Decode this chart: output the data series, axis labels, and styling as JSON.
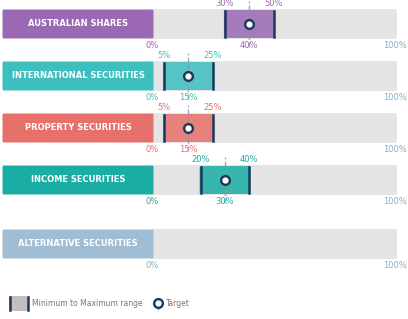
{
  "categories": [
    "AUSTRALIAN SHARES",
    "INTERNATIONAL SECURITIES",
    "PROPERTY SECURITIES",
    "INCOME SECURITIES",
    "ALTERNATIVE SECURITIES"
  ],
  "label_colors": [
    "#9b69b4",
    "#3dbfbf",
    "#e8706a",
    "#1aada3",
    "#a0bdd4"
  ],
  "range_colors": [
    "#9b69b4",
    "#3dbfbf",
    "#e8706a",
    "#1aada3",
    "#a0bdd4"
  ],
  "bar_bg_color": "#e4e4e4",
  "ranges": [
    [
      30,
      50
    ],
    [
      5,
      25
    ],
    [
      5,
      25
    ],
    [
      20,
      40
    ],
    [
      0,
      0
    ]
  ],
  "targets": [
    40,
    15,
    15,
    30,
    0
  ],
  "target_labels": [
    "40%",
    "15%",
    "15%",
    "30%",
    ""
  ],
  "min_labels": [
    "30%",
    "5%",
    "5%",
    "20%",
    ""
  ],
  "max_labels": [
    "50%",
    "25%",
    "25%",
    "40%",
    ""
  ],
  "axis_left_labels": [
    "0%",
    "0%",
    "0%",
    "0%",
    "0%"
  ],
  "axis_right_labels": [
    "100%",
    "100%",
    "100%",
    "100%",
    "100%"
  ],
  "minmax_colors": [
    "#9b69b4",
    "#3dbfbf",
    "#e8706a",
    "#1aada3",
    "#a0bdd4"
  ],
  "left_axis_colors": [
    "#9b69b4",
    "#3dbfbf",
    "#e8706a",
    "#1aada3",
    "#7ab0cc"
  ],
  "right_axis_colors": [
    "#7ab0cc",
    "#7ab0cc",
    "#7ab0cc",
    "#7ab0cc",
    "#7ab0cc"
  ],
  "target_dot_color": "#1a3a5c",
  "range_border_color": "#1a3a5c",
  "legend_range_color": "#c0c0c0",
  "bg_color": "#ffffff",
  "dashed_line_color": "#9090b0",
  "legend_text_color": "#777777"
}
